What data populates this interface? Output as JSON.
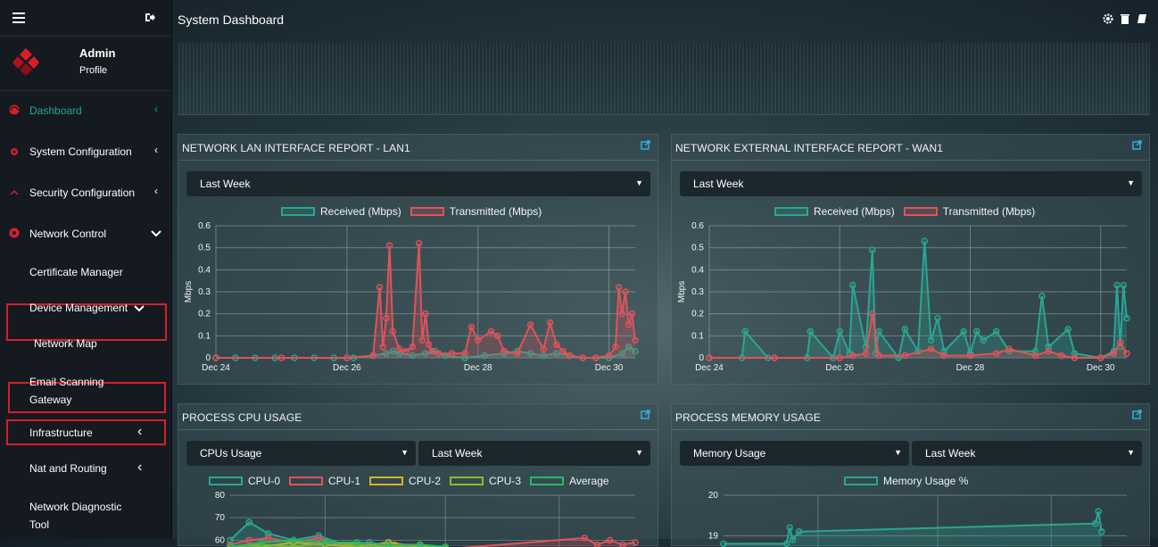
{
  "header": {
    "title": "System Dashboard"
  },
  "profile": {
    "name": "Admin",
    "sub": "Profile"
  },
  "sidebar": {
    "items": [
      {
        "label": "Dashboard"
      },
      {
        "label": "System Configuration"
      },
      {
        "label": "Security Configuration"
      },
      {
        "label": "Network Control"
      },
      {
        "label": "Certificate Manager"
      },
      {
        "label": "Device Management"
      },
      {
        "label": "Network Map"
      },
      {
        "label": "Email Scanning Gateway"
      },
      {
        "label": "Infrastructure"
      },
      {
        "label": "Nat and Routing"
      },
      {
        "label": "Network Diagnostic Tool"
      }
    ]
  },
  "colors": {
    "accent": "#1fa79a",
    "received": "#2aa693",
    "transmitted": "#e0535b",
    "highlight": "#d61f2b"
  },
  "panels": {
    "lan": {
      "title": "NETWORK LAN INTERFACE REPORT - LAN1",
      "period": "Last Week",
      "legend": [
        "Received (Mbps)",
        "Transmitted (Mbps)"
      ]
    },
    "wan": {
      "title": "NETWORK EXTERNAL INTERFACE REPORT - WAN1",
      "period": "Last Week",
      "legend": [
        "Received (Mbps)",
        "Transmitted (Mbps)"
      ]
    },
    "cpu": {
      "title": "PROCESS CPU USAGE",
      "metric": "CPUs Usage",
      "period": "Last Week",
      "legend": [
        "CPU-0",
        "CPU-1",
        "CPU-2",
        "CPU-3",
        "Average"
      ]
    },
    "mem": {
      "title": "PROCESS MEMORY USAGE",
      "metric": "Memory Usage",
      "period": "Last Week",
      "legend": [
        "Memory Usage %"
      ]
    }
  },
  "chart_data": [
    {
      "type": "line",
      "ylabel": "Mbps",
      "ylim": [
        0,
        0.6
      ],
      "yticks": [
        "0",
        "0.1",
        "0.2",
        "0.3",
        "0.4",
        "0.5",
        "0.6"
      ],
      "xlim": [
        0,
        6.4
      ],
      "xticks": [
        {
          "x": 0,
          "label": "Dec 24"
        },
        {
          "x": 2,
          "label": "Dec 26"
        },
        {
          "x": 4,
          "label": "Dec 28"
        },
        {
          "x": 6,
          "label": "Dec 30"
        }
      ],
      "series": [
        {
          "name": "Received (Mbps)",
          "color": "#2aa693",
          "x": [
            0,
            0.3,
            0.6,
            0.9,
            1.2,
            1.5,
            1.8,
            2.1,
            2.4,
            2.6,
            2.7,
            2.8,
            3.0,
            3.2,
            3.35,
            3.5,
            3.8,
            4.1,
            4.4,
            4.6,
            4.8,
            5.0,
            5.2,
            5.4,
            5.6,
            5.8,
            6.0,
            6.2,
            6.3,
            6.4
          ],
          "y": [
            0,
            0,
            0,
            0,
            0,
            0,
            0,
            0,
            0.01,
            0.02,
            0.03,
            0.02,
            0.01,
            0.02,
            0.03,
            0.01,
            0.0,
            0.01,
            0.02,
            0.03,
            0.02,
            0.01,
            0.02,
            0.01,
            0.0,
            0.0,
            0.0,
            0.02,
            0.05,
            0.03
          ]
        },
        {
          "name": "Transmitted (Mbps)",
          "color": "#e0535b",
          "x": [
            0,
            1.0,
            2.0,
            2.4,
            2.5,
            2.55,
            2.6,
            2.65,
            2.7,
            2.8,
            2.9,
            3.0,
            3.1,
            3.15,
            3.2,
            3.25,
            3.3,
            3.4,
            3.6,
            3.8,
            3.9,
            4.0,
            4.2,
            4.3,
            4.4,
            4.6,
            4.8,
            5.0,
            5.1,
            5.2,
            5.3,
            5.4,
            5.6,
            5.8,
            6.0,
            6.1,
            6.15,
            6.2,
            6.25,
            6.3,
            6.35,
            6.4
          ],
          "y": [
            0,
            0,
            0,
            0.01,
            0.32,
            0.05,
            0.18,
            0.51,
            0.12,
            0.04,
            0.03,
            0.05,
            0.52,
            0.08,
            0.2,
            0.06,
            0.03,
            0.02,
            0.02,
            0.02,
            0.14,
            0.08,
            0.12,
            0.1,
            0.03,
            0.02,
            0.15,
            0.04,
            0.16,
            0.06,
            0.03,
            0.01,
            0.0,
            0.0,
            0.01,
            0.05,
            0.32,
            0.2,
            0.3,
            0.15,
            0.2,
            0.08
          ]
        }
      ]
    },
    {
      "type": "line",
      "ylabel": "Mbps",
      "ylim": [
        0,
        0.6
      ],
      "yticks": [
        "0",
        "0.1",
        "0.2",
        "0.3",
        "0.4",
        "0.5",
        "0.6"
      ],
      "xlim": [
        0,
        6.4
      ],
      "xticks": [
        {
          "x": 0,
          "label": "Dec 24"
        },
        {
          "x": 2,
          "label": "Dec 26"
        },
        {
          "x": 4,
          "label": "Dec 28"
        },
        {
          "x": 6,
          "label": "Dec 30"
        }
      ],
      "series": [
        {
          "name": "Received (Mbps)",
          "color": "#2aa693",
          "x": [
            0,
            0.5,
            0.55,
            0.9,
            1.0,
            1.5,
            1.55,
            1.9,
            2.0,
            2.15,
            2.2,
            2.4,
            2.5,
            2.55,
            2.6,
            2.9,
            3.0,
            3.2,
            3.3,
            3.4,
            3.5,
            3.6,
            3.9,
            4.0,
            4.1,
            4.2,
            4.4,
            4.6,
            5.0,
            5.1,
            5.2,
            5.5,
            5.6,
            6.0,
            6.2,
            6.25,
            6.3,
            6.35,
            6.4
          ],
          "y": [
            0,
            0,
            0.12,
            0,
            0,
            0,
            0.12,
            0,
            0.12,
            0.02,
            0.33,
            0.05,
            0.49,
            0.02,
            0.12,
            0,
            0.13,
            0.03,
            0.53,
            0.08,
            0.18,
            0.03,
            0.12,
            0.02,
            0.12,
            0.08,
            0.12,
            0.03,
            0.03,
            0.28,
            0.05,
            0.13,
            0.02,
            0,
            0.03,
            0.33,
            0.05,
            0.33,
            0.18
          ]
        },
        {
          "name": "Transmitted (Mbps)",
          "color": "#e0535b",
          "x": [
            0,
            1.0,
            2.0,
            2.2,
            2.4,
            2.5,
            2.6,
            3.0,
            3.4,
            3.6,
            4.0,
            4.4,
            4.6,
            5.0,
            5.2,
            5.4,
            5.6,
            6.0,
            6.2,
            6.3,
            6.4
          ],
          "y": [
            0,
            0,
            0,
            0.01,
            0.02,
            0.2,
            0.01,
            0.01,
            0.04,
            0.01,
            0.01,
            0.02,
            0.04,
            0.01,
            0.03,
            0.01,
            0,
            0,
            0.02,
            0.07,
            0.02
          ]
        }
      ]
    },
    {
      "type": "line",
      "yticks": [
        "60",
        "70",
        "80"
      ],
      "ylim": [
        53,
        80
      ],
      "series": [
        {
          "name": "CPU-0",
          "color": "#2aa693",
          "x": [
            0,
            0.3,
            0.6,
            1.0,
            1.4,
            1.8,
            2.2,
            2.6,
            3.0,
            3.4
          ],
          "y": [
            60,
            68,
            63,
            60,
            62,
            58,
            59,
            57,
            58,
            57
          ]
        },
        {
          "name": "CPU-1",
          "color": "#e0535b",
          "x": [
            0,
            0.3,
            0.6,
            1.0,
            1.4,
            1.8,
            2.2,
            2.6,
            3.0,
            3.4,
            5.6,
            5.8,
            6.0,
            6.2,
            6.4
          ],
          "y": [
            58,
            60,
            61,
            59,
            61,
            57,
            58,
            58,
            57,
            56,
            61,
            58,
            60,
            58,
            59
          ]
        },
        {
          "name": "CPU-2",
          "color": "#d8b227",
          "x": [
            0,
            0.5,
            1.0,
            1.5,
            2.0,
            2.5,
            3.0,
            3.4
          ],
          "y": [
            56,
            57,
            59,
            58,
            57,
            59,
            57,
            56
          ]
        },
        {
          "name": "CPU-3",
          "color": "#8fb82c",
          "x": [
            0,
            0.5,
            1.0,
            1.5,
            2.0,
            2.5,
            3.0,
            3.4
          ],
          "y": [
            57,
            58,
            57,
            59,
            58,
            57,
            58,
            56
          ]
        },
        {
          "name": "Average",
          "color": "#27b865",
          "x": [
            0,
            0.5,
            1.0,
            1.5,
            2.0,
            2.5,
            3.0,
            3.4
          ],
          "y": [
            57,
            59,
            60,
            59,
            59,
            58,
            58,
            57
          ]
        }
      ]
    },
    {
      "type": "line",
      "yticks": [
        "19",
        "20"
      ],
      "ylim": [
        18.5,
        20
      ],
      "series": [
        {
          "name": "Memory Usage %",
          "color": "#2aa693",
          "x": [
            0,
            1.0,
            1.05,
            1.1,
            1.2,
            5.9,
            5.95,
            6.0
          ],
          "y": [
            18.8,
            18.8,
            19.2,
            18.9,
            19.1,
            19.3,
            19.6,
            19.1
          ]
        }
      ]
    }
  ]
}
